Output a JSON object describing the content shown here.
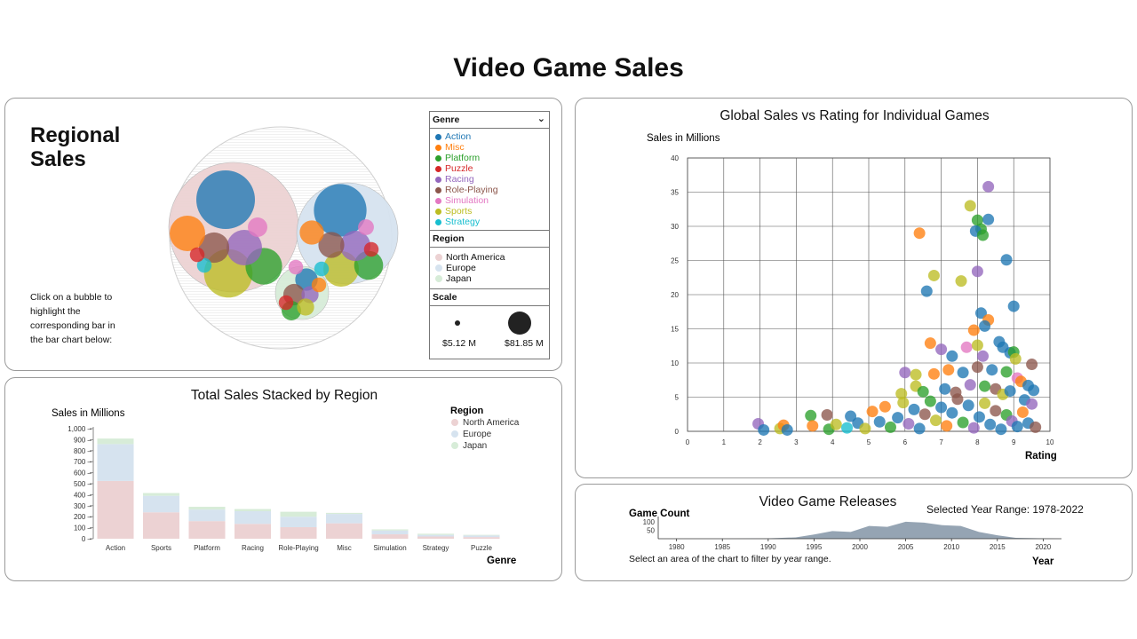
{
  "page_title": "Video Game Sales",
  "colors": {
    "genre": {
      "Action": "#1f77b4",
      "Misc": "#ff7f0e",
      "Platform": "#2ca02c",
      "Puzzle": "#d62728",
      "Racing": "#9467bd",
      "Role-Playing": "#8c564b",
      "Simulation": "#e377c2",
      "Sports": "#bcbd22",
      "Strategy": "#17becf"
    },
    "region": {
      "North America": "#ecd2d3",
      "Europe": "#d6e3ef",
      "Japan": "#d7ecd8"
    }
  },
  "regional": {
    "title": "Regional Sales",
    "instruction": "Click on a bubble to highlight the corresponding bar in the bar chart below:",
    "legend": {
      "genre_title": "Genre",
      "genres": [
        "Action",
        "Misc",
        "Platform",
        "Puzzle",
        "Racing",
        "Role-Playing",
        "Simulation",
        "Sports",
        "Strategy"
      ],
      "region_title": "Region",
      "regions": [
        "North America",
        "Europe",
        "Japan"
      ],
      "scale_title": "Scale",
      "scale_min": "$5.12 M",
      "scale_max": "$81.85 M"
    }
  },
  "bar": {
    "title": "Total Sales Stacked by Region",
    "ylabel": "Sales in Millions",
    "xlabel": "Genre",
    "legend_title": "Region",
    "yticks": [
      "1,000",
      "900",
      "800",
      "700",
      "600",
      "500",
      "400",
      "300",
      "200",
      "100",
      "0"
    ]
  },
  "scatter": {
    "title": "Global Sales vs Rating for Individual Games",
    "ylabel": "Sales in Millions",
    "xlabel": "Rating"
  },
  "releases": {
    "title": "Video Game Releases",
    "ylabel": "Game Count",
    "xlabel": "Year",
    "range_label": "Selected Year Range: 1978-2022",
    "instruction": "Select an area of the chart to filter by year range.",
    "yticks": [
      "100",
      "50"
    ],
    "xticks": [
      "1980",
      "1985",
      "1990",
      "1995",
      "2000",
      "2005",
      "2010",
      "2015",
      "2020"
    ]
  },
  "chart_data": [
    {
      "type": "bubble",
      "title": "Regional Sales",
      "groups": [
        {
          "region": "North America",
          "bubbles": [
            {
              "genre": "Action",
              "value": 81.85
            },
            {
              "genre": "Sports",
              "value": 56
            },
            {
              "genre": "Platform",
              "value": 32
            },
            {
              "genre": "Racing",
              "value": 30
            },
            {
              "genre": "Role-Playing",
              "value": 22
            },
            {
              "genre": "Misc",
              "value": 30
            },
            {
              "genre": "Simulation",
              "value": 9
            },
            {
              "genre": "Strategy",
              "value": 5.12
            },
            {
              "genre": "Puzzle",
              "value": 5.12
            }
          ]
        },
        {
          "region": "Europe",
          "bubbles": [
            {
              "genre": "Action",
              "value": 66
            },
            {
              "genre": "Sports",
              "value": 30
            },
            {
              "genre": "Platform",
              "value": 20
            },
            {
              "genre": "Racing",
              "value": 22
            },
            {
              "genre": "Role-Playing",
              "value": 16
            },
            {
              "genre": "Misc",
              "value": 14
            },
            {
              "genre": "Simulation",
              "value": 6
            },
            {
              "genre": "Puzzle",
              "value": 5.12
            }
          ]
        },
        {
          "region": "Japan",
          "bubbles": [
            {
              "genre": "Action",
              "value": 12
            },
            {
              "genre": "Role-Playing",
              "value": 11
            },
            {
              "genre": "Platform",
              "value": 9
            },
            {
              "genre": "Racing",
              "value": 7
            },
            {
              "genre": "Sports",
              "value": 7
            },
            {
              "genre": "Misc",
              "value": 5.12
            },
            {
              "genre": "Strategy",
              "value": 5.12
            },
            {
              "genre": "Puzzle",
              "value": 5.12
            },
            {
              "genre": "Simulation",
              "value": 5.12
            }
          ]
        }
      ]
    },
    {
      "type": "bar",
      "title": "Total Sales Stacked by Region",
      "categories": [
        "Action",
        "Sports",
        "Platform",
        "Racing",
        "Role-Playing",
        "Misc",
        "Simulation",
        "Strategy",
        "Puzzle"
      ],
      "series": [
        {
          "name": "North America",
          "values": [
            525,
            240,
            160,
            135,
            105,
            140,
            40,
            20,
            15
          ]
        },
        {
          "name": "Europe",
          "values": [
            335,
            150,
            105,
            115,
            95,
            85,
            35,
            15,
            15
          ]
        },
        {
          "name": "Japan",
          "values": [
            50,
            25,
            25,
            20,
            45,
            10,
            10,
            10,
            5
          ]
        }
      ],
      "xlabel": "Genre",
      "ylabel": "Sales in Millions",
      "ylim": [
        0,
        1000
      ]
    },
    {
      "type": "scatter",
      "title": "Global Sales vs Rating for Individual Games",
      "xlabel": "Rating",
      "ylabel": "Sales in Millions",
      "xlim": [
        0,
        10
      ],
      "ylim": [
        0,
        40
      ],
      "grid": true,
      "points": [
        {
          "x": 8.3,
          "y": 35.8,
          "genre": "Racing"
        },
        {
          "x": 7.8,
          "y": 33.0,
          "genre": "Sports"
        },
        {
          "x": 8.0,
          "y": 30.9,
          "genre": "Platform"
        },
        {
          "x": 8.3,
          "y": 31.0,
          "genre": "Action"
        },
        {
          "x": 8.1,
          "y": 29.6,
          "genre": "Platform"
        },
        {
          "x": 7.95,
          "y": 29.3,
          "genre": "Action"
        },
        {
          "x": 8.15,
          "y": 28.7,
          "genre": "Platform"
        },
        {
          "x": 6.4,
          "y": 29.0,
          "genre": "Misc"
        },
        {
          "x": 8.8,
          "y": 25.1,
          "genre": "Action"
        },
        {
          "x": 8.0,
          "y": 23.4,
          "genre": "Racing"
        },
        {
          "x": 6.8,
          "y": 22.8,
          "genre": "Sports"
        },
        {
          "x": 7.55,
          "y": 22.0,
          "genre": "Sports"
        },
        {
          "x": 6.6,
          "y": 20.5,
          "genre": "Action"
        },
        {
          "x": 9.0,
          "y": 18.3,
          "genre": "Action"
        },
        {
          "x": 8.1,
          "y": 17.3,
          "genre": "Action"
        },
        {
          "x": 8.3,
          "y": 16.3,
          "genre": "Misc"
        },
        {
          "x": 8.2,
          "y": 15.4,
          "genre": "Action"
        },
        {
          "x": 7.9,
          "y": 14.8,
          "genre": "Misc"
        },
        {
          "x": 6.7,
          "y": 12.9,
          "genre": "Misc"
        },
        {
          "x": 7.0,
          "y": 12.0,
          "genre": "Racing"
        },
        {
          "x": 7.7,
          "y": 12.3,
          "genre": "Simulation"
        },
        {
          "x": 8.0,
          "y": 12.6,
          "genre": "Sports"
        },
        {
          "x": 8.6,
          "y": 13.1,
          "genre": "Action"
        },
        {
          "x": 8.7,
          "y": 12.3,
          "genre": "Action"
        },
        {
          "x": 8.9,
          "y": 11.5,
          "genre": "Action"
        },
        {
          "x": 9.0,
          "y": 11.6,
          "genre": "Platform"
        },
        {
          "x": 7.3,
          "y": 11.0,
          "genre": "Action"
        },
        {
          "x": 8.15,
          "y": 11.0,
          "genre": "Racing"
        },
        {
          "x": 9.05,
          "y": 10.6,
          "genre": "Sports"
        },
        {
          "x": 9.5,
          "y": 9.8,
          "genre": "Role-Playing"
        },
        {
          "x": 6.0,
          "y": 8.6,
          "genre": "Racing"
        },
        {
          "x": 6.3,
          "y": 8.3,
          "genre": "Sports"
        },
        {
          "x": 6.8,
          "y": 8.4,
          "genre": "Misc"
        },
        {
          "x": 7.2,
          "y": 9.0,
          "genre": "Misc"
        },
        {
          "x": 7.6,
          "y": 8.6,
          "genre": "Action"
        },
        {
          "x": 8.0,
          "y": 9.4,
          "genre": "Role-Playing"
        },
        {
          "x": 8.4,
          "y": 9.0,
          "genre": "Action"
        },
        {
          "x": 8.8,
          "y": 8.7,
          "genre": "Platform"
        },
        {
          "x": 9.1,
          "y": 7.8,
          "genre": "Simulation"
        },
        {
          "x": 9.2,
          "y": 7.3,
          "genre": "Misc"
        },
        {
          "x": 9.4,
          "y": 6.7,
          "genre": "Action"
        },
        {
          "x": 9.55,
          "y": 6.0,
          "genre": "Action"
        },
        {
          "x": 6.3,
          "y": 6.6,
          "genre": "Sports"
        },
        {
          "x": 6.5,
          "y": 5.8,
          "genre": "Platform"
        },
        {
          "x": 5.9,
          "y": 5.5,
          "genre": "Sports"
        },
        {
          "x": 7.1,
          "y": 6.2,
          "genre": "Action"
        },
        {
          "x": 7.4,
          "y": 5.7,
          "genre": "Role-Playing"
        },
        {
          "x": 7.8,
          "y": 6.8,
          "genre": "Racing"
        },
        {
          "x": 8.2,
          "y": 6.6,
          "genre": "Platform"
        },
        {
          "x": 8.5,
          "y": 6.2,
          "genre": "Role-Playing"
        },
        {
          "x": 8.7,
          "y": 5.4,
          "genre": "Sports"
        },
        {
          "x": 8.9,
          "y": 5.9,
          "genre": "Action"
        },
        {
          "x": 9.3,
          "y": 4.6,
          "genre": "Action"
        },
        {
          "x": 9.5,
          "y": 4.0,
          "genre": "Racing"
        },
        {
          "x": 1.95,
          "y": 1.1,
          "genre": "Racing"
        },
        {
          "x": 2.1,
          "y": 0.2,
          "genre": "Action"
        },
        {
          "x": 2.55,
          "y": 0.4,
          "genre": "Sports"
        },
        {
          "x": 2.65,
          "y": 0.9,
          "genre": "Misc"
        },
        {
          "x": 2.75,
          "y": 0.2,
          "genre": "Action"
        },
        {
          "x": 3.4,
          "y": 2.3,
          "genre": "Platform"
        },
        {
          "x": 3.45,
          "y": 0.8,
          "genre": "Misc"
        },
        {
          "x": 3.85,
          "y": 2.4,
          "genre": "Role-Playing"
        },
        {
          "x": 3.9,
          "y": 0.3,
          "genre": "Platform"
        },
        {
          "x": 4.1,
          "y": 1.0,
          "genre": "Sports"
        },
        {
          "x": 4.4,
          "y": 0.5,
          "genre": "Strategy"
        },
        {
          "x": 4.5,
          "y": 2.2,
          "genre": "Action"
        },
        {
          "x": 4.7,
          "y": 1.2,
          "genre": "Action"
        },
        {
          "x": 4.9,
          "y": 0.4,
          "genre": "Sports"
        },
        {
          "x": 5.1,
          "y": 2.9,
          "genre": "Misc"
        },
        {
          "x": 5.3,
          "y": 1.4,
          "genre": "Action"
        },
        {
          "x": 5.45,
          "y": 3.6,
          "genre": "Misc"
        },
        {
          "x": 5.6,
          "y": 0.6,
          "genre": "Platform"
        },
        {
          "x": 5.8,
          "y": 2.0,
          "genre": "Action"
        },
        {
          "x": 5.95,
          "y": 4.2,
          "genre": "Sports"
        },
        {
          "x": 6.1,
          "y": 1.1,
          "genre": "Racing"
        },
        {
          "x": 6.25,
          "y": 3.2,
          "genre": "Action"
        },
        {
          "x": 6.4,
          "y": 0.4,
          "genre": "Action"
        },
        {
          "x": 6.55,
          "y": 2.5,
          "genre": "Role-Playing"
        },
        {
          "x": 6.7,
          "y": 4.4,
          "genre": "Platform"
        },
        {
          "x": 6.85,
          "y": 1.6,
          "genre": "Sports"
        },
        {
          "x": 7.0,
          "y": 3.5,
          "genre": "Action"
        },
        {
          "x": 7.15,
          "y": 0.8,
          "genre": "Misc"
        },
        {
          "x": 7.3,
          "y": 2.7,
          "genre": "Action"
        },
        {
          "x": 7.45,
          "y": 4.7,
          "genre": "Role-Playing"
        },
        {
          "x": 7.6,
          "y": 1.3,
          "genre": "Platform"
        },
        {
          "x": 7.75,
          "y": 3.8,
          "genre": "Action"
        },
        {
          "x": 7.9,
          "y": 0.5,
          "genre": "Racing"
        },
        {
          "x": 8.05,
          "y": 2.1,
          "genre": "Action"
        },
        {
          "x": 8.2,
          "y": 4.1,
          "genre": "Sports"
        },
        {
          "x": 8.35,
          "y": 1.0,
          "genre": "Action"
        },
        {
          "x": 8.5,
          "y": 3.0,
          "genre": "Role-Playing"
        },
        {
          "x": 8.65,
          "y": 0.3,
          "genre": "Action"
        },
        {
          "x": 8.8,
          "y": 2.4,
          "genre": "Platform"
        },
        {
          "x": 8.95,
          "y": 1.5,
          "genre": "Racing"
        },
        {
          "x": 9.1,
          "y": 0.7,
          "genre": "Action"
        },
        {
          "x": 9.25,
          "y": 2.8,
          "genre": "Misc"
        },
        {
          "x": 9.4,
          "y": 1.2,
          "genre": "Action"
        },
        {
          "x": 9.6,
          "y": 0.6,
          "genre": "Role-Playing"
        }
      ]
    },
    {
      "type": "area",
      "title": "Video Game Releases",
      "xlabel": "Year",
      "ylabel": "Game Count",
      "xlim": [
        1978,
        2022
      ],
      "ylim": [
        0,
        110
      ],
      "x": [
        1978,
        1985,
        1990,
        1993,
        1995,
        1997,
        1999,
        2001,
        2003,
        2005,
        2007,
        2009,
        2011,
        2013,
        2015,
        2017,
        2022
      ],
      "y": [
        0,
        0,
        2,
        8,
        25,
        45,
        40,
        75,
        70,
        100,
        95,
        80,
        75,
        40,
        20,
        5,
        0
      ]
    }
  ]
}
